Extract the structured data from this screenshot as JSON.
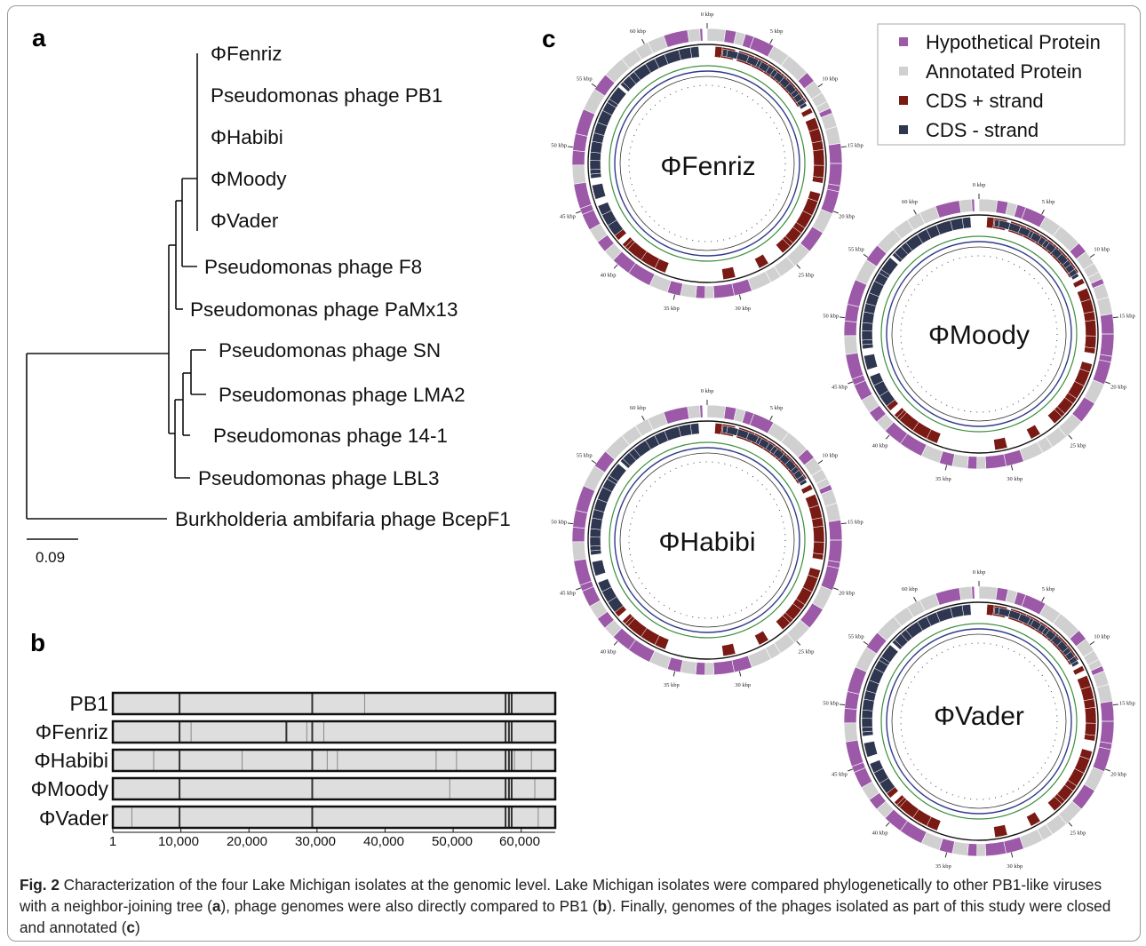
{
  "panels": {
    "a": "a",
    "b": "b",
    "c": "c"
  },
  "tree": {
    "leaves": [
      "ΦFenriz",
      "Pseudomonas phage PB1",
      "ΦHabibi",
      "ΦMoody",
      "ΦVader",
      "Pseudomonas phage F8",
      "Pseudomonas phage PaMx13",
      "Pseudomonas phage SN",
      "Pseudomonas phage LMA2",
      "Pseudomonas phage 14-1",
      "Pseudomonas phage LBL3",
      "Burkholderia ambifaria phage BcepF1"
    ],
    "scale_label": "0.09",
    "scale_value": 0.09
  },
  "alignment": {
    "rows": [
      "PB1",
      "ΦFenriz",
      "ΦHabibi",
      "ΦMoody",
      "ΦVader"
    ],
    "ticks": [
      "1",
      "10,000",
      "20,000",
      "30,000",
      "40,000",
      "50,000",
      "60,000"
    ],
    "tick_values": [
      1,
      10000,
      20000,
      30000,
      40000,
      50000,
      60000
    ],
    "genome_max": 65000,
    "dark_lines": [
      [
        9800,
        29300,
        57700,
        58200,
        58600
      ],
      [
        9800,
        25500,
        29300,
        57700,
        58200,
        58600
      ],
      [
        9800,
        29300,
        57700,
        58200,
        58600
      ],
      [
        9800,
        29300,
        57700,
        58200,
        58600
      ],
      [
        9800,
        29300,
        57700,
        58200,
        58600
      ]
    ],
    "light_lines": [
      [
        37000
      ],
      [
        11500,
        28500,
        31000
      ],
      [
        6000,
        19000,
        31500,
        33000,
        47500,
        50500,
        59000,
        61500
      ],
      [
        49500,
        62000
      ],
      [
        2800,
        62500
      ]
    ]
  },
  "genome_maps": {
    "legend": [
      {
        "label": "Hypothetical Protein",
        "color": "#9b59a8"
      },
      {
        "label": "Annotated Protein",
        "color": "#d0d0d0"
      },
      {
        "label": "CDS + strand",
        "color": "#7a1a14"
      },
      {
        "label": "CDS -  strand",
        "color": "#2e3650"
      }
    ],
    "maps": [
      {
        "name": "ΦFenriz"
      },
      {
        "name": "ΦMoody"
      },
      {
        "name": "ΦHabibi"
      },
      {
        "name": "ΦVader"
      }
    ],
    "kbp_labels": [
      "0 kbp",
      "5 kbp",
      "10 kbp",
      "15 kbp",
      "20 kbp",
      "25 kbp",
      "30 kbp",
      "35 kbp",
      "40 kbp",
      "45 kbp",
      "50 kbp",
      "55 kbp",
      "60 kbp"
    ]
  },
  "caption": {
    "fig_label": "Fig. 2",
    "part1": " Characterization of the four Lake Michigan isolates at the genomic level. Lake Michigan isolates were compared phylogenetically to other PB1-like viruses with a neighbor-joining tree (",
    "ref_a": "a",
    "part2": "), phage genomes were also directly compared to PB1 (",
    "ref_b": "b",
    "part3": "). Finally, genomes of the phages isolated as part of this study were closed and annotated (",
    "ref_c": "c",
    "part4": ")"
  }
}
